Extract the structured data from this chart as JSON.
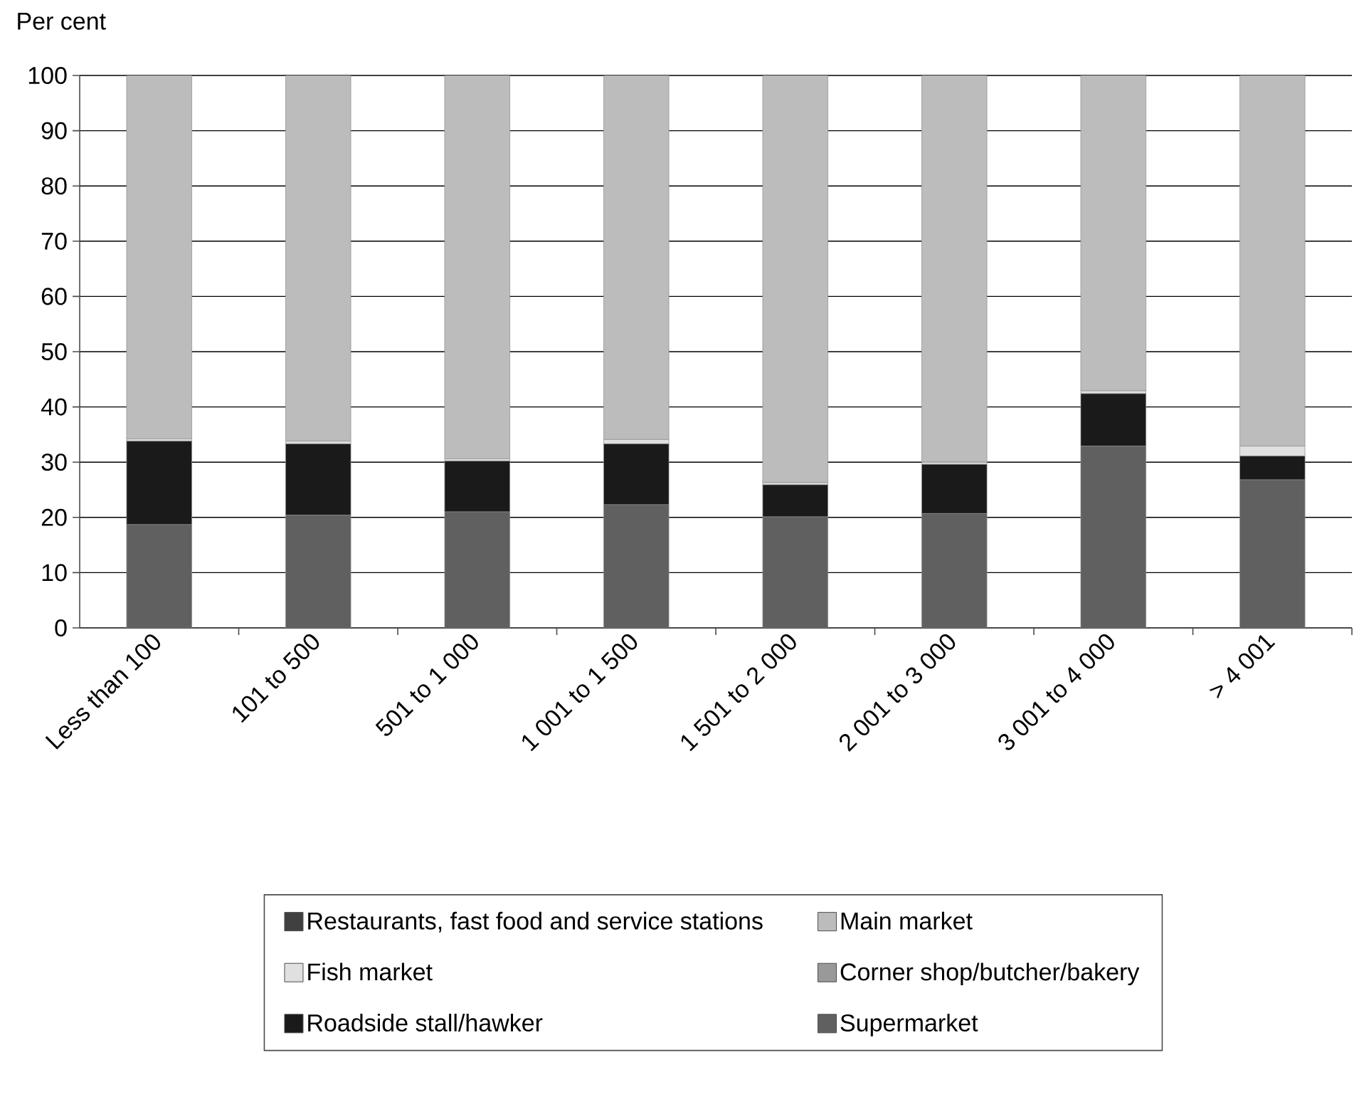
{
  "chart_data": {
    "type": "bar",
    "stacked": true,
    "ylabel": "Per cent",
    "categories": [
      "Less than 100",
      "101 to 500",
      "501 to 1 000",
      "1 001 to 1 500",
      "1 501 to 2 000",
      "2 001 to 3 000",
      "3 001 to 4 000",
      "> 4 001"
    ],
    "series": [
      {
        "name": "Supermarket",
        "color": "#606060",
        "values": [
          18.7,
          20.4,
          21.0,
          22.3,
          20.1,
          20.7,
          32.9,
          26.8
        ]
      },
      {
        "name": "Roadside stall/hawker",
        "color": "#1a1a1a",
        "values": [
          15.1,
          12.9,
          9.2,
          11.0,
          5.8,
          8.9,
          9.5,
          4.3
        ]
      },
      {
        "name": "Corner shop/butcher/bakery",
        "color": "#999999",
        "values": [
          null,
          null,
          null,
          null,
          null,
          null,
          null,
          null
        ]
      },
      {
        "name": "Fish market",
        "color": "#e0e0e0",
        "values": [
          0.4,
          0.5,
          0.4,
          0.8,
          0.4,
          0.4,
          0.5,
          1.8
        ]
      },
      {
        "name": "Main market",
        "color": "#bcbcbc",
        "values": [
          65.8,
          66.2,
          69.4,
          65.9,
          73.7,
          70.0,
          57.1,
          67.1
        ]
      },
      {
        "name": "Restaurants, fast food and service stations",
        "color": "#404040",
        "values": [
          null,
          null,
          null,
          null,
          null,
          null,
          null,
          null
        ]
      }
    ],
    "ylim": [
      0,
      100
    ],
    "yticks": [
      0,
      10,
      20,
      30,
      40,
      50,
      60,
      70,
      80,
      90,
      100
    ],
    "grid": "y",
    "legend": "bottom"
  }
}
